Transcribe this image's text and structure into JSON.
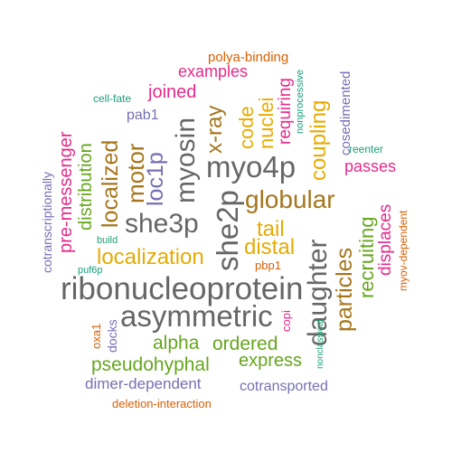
{
  "colors": {
    "teal": "#1b9e77",
    "orange": "#d95f02",
    "purple": "#7570b3",
    "magenta": "#e7298a",
    "green": "#66a61e",
    "gold": "#e6ab02",
    "brown": "#a6761d",
    "gray": "#666666"
  },
  "words": [
    {
      "text": "ribonucleoprotein",
      "color": "gray"
    },
    {
      "text": "asymmetric",
      "color": "gray"
    },
    {
      "text": "myo4p",
      "color": "gray"
    },
    {
      "text": "she3p",
      "color": "gray"
    },
    {
      "text": "she2p",
      "color": "gray"
    },
    {
      "text": "myosin",
      "color": "gray"
    },
    {
      "text": "daughter",
      "color": "gray"
    },
    {
      "text": "globular",
      "color": "brown"
    },
    {
      "text": "localization",
      "color": "gold"
    },
    {
      "text": "localized",
      "color": "brown"
    },
    {
      "text": "motor",
      "color": "brown"
    },
    {
      "text": "loc1p",
      "color": "purple"
    },
    {
      "text": "x-ray",
      "color": "brown"
    },
    {
      "text": "particles",
      "color": "brown"
    },
    {
      "text": "coupling",
      "color": "gold"
    },
    {
      "text": "distal",
      "color": "gold"
    },
    {
      "text": "tail",
      "color": "gold"
    },
    {
      "text": "code",
      "color": "gold"
    },
    {
      "text": "nuclei",
      "color": "gold"
    },
    {
      "text": "pseudohyphal",
      "color": "green"
    },
    {
      "text": "ordered",
      "color": "green"
    },
    {
      "text": "alpha",
      "color": "green"
    },
    {
      "text": "express",
      "color": "green"
    },
    {
      "text": "recruiting",
      "color": "green"
    },
    {
      "text": "distribution",
      "color": "green"
    },
    {
      "text": "joined",
      "color": "magenta"
    },
    {
      "text": "examples",
      "color": "magenta"
    },
    {
      "text": "pre-messenger",
      "color": "magenta"
    },
    {
      "text": "requiring",
      "color": "magenta"
    },
    {
      "text": "passes",
      "color": "magenta"
    },
    {
      "text": "displaces",
      "color": "magenta"
    },
    {
      "text": "dimer-dependent",
      "color": "purple"
    },
    {
      "text": "cotransported",
      "color": "purple"
    },
    {
      "text": "pab1",
      "color": "purple"
    },
    {
      "text": "cosedimented",
      "color": "purple"
    },
    {
      "text": "cotranscriptionally",
      "color": "purple"
    },
    {
      "text": "docks",
      "color": "purple"
    },
    {
      "text": "polya-binding",
      "color": "orange"
    },
    {
      "text": "deletion-interaction",
      "color": "orange"
    },
    {
      "text": "myov-dependent",
      "color": "orange"
    },
    {
      "text": "pbp1",
      "color": "orange"
    },
    {
      "text": "copi",
      "color": "magenta"
    },
    {
      "text": "oxa1",
      "color": "orange"
    },
    {
      "text": "cell-fate",
      "color": "teal"
    },
    {
      "text": "nonprocessive",
      "color": "teal"
    },
    {
      "text": "reenter",
      "color": "teal"
    },
    {
      "text": "build",
      "color": "teal"
    },
    {
      "text": "nonclassical",
      "color": "teal"
    },
    {
      "text": "puf6p",
      "color": "teal"
    }
  ]
}
